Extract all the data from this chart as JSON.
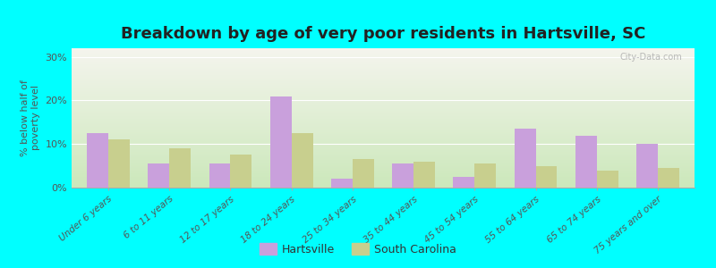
{
  "title": "Breakdown by age of very poor residents in Hartsville, SC",
  "ylabel": "% below half of\npoverty level",
  "categories": [
    "Under 6 years",
    "6 to 11 years",
    "12 to 17 years",
    "18 to 24 years",
    "25 to 34 years",
    "35 to 44 years",
    "45 to 54 years",
    "55 to 64 years",
    "65 to 74 years",
    "75 years and over"
  ],
  "hartsville": [
    12.5,
    5.5,
    5.5,
    21.0,
    2.0,
    5.5,
    2.5,
    13.5,
    12.0,
    10.0
  ],
  "south_carolina": [
    11.0,
    9.0,
    7.5,
    12.5,
    6.5,
    6.0,
    5.5,
    5.0,
    4.0,
    4.5
  ],
  "hartsville_color": "#c9a0dc",
  "sc_color": "#c8cf8e",
  "background_color": "#00ffff",
  "grad_top": "#f5f5ee",
  "grad_bottom": "#cce8bb",
  "ylim": [
    0,
    32
  ],
  "yticks": [
    0,
    10,
    20,
    30
  ],
  "ytick_labels": [
    "0%",
    "10%",
    "20%",
    "30%"
  ],
  "bar_width": 0.35,
  "title_fontsize": 13,
  "legend_labels": [
    "Hartsville",
    "South Carolina"
  ],
  "watermark": "City-Data.com"
}
